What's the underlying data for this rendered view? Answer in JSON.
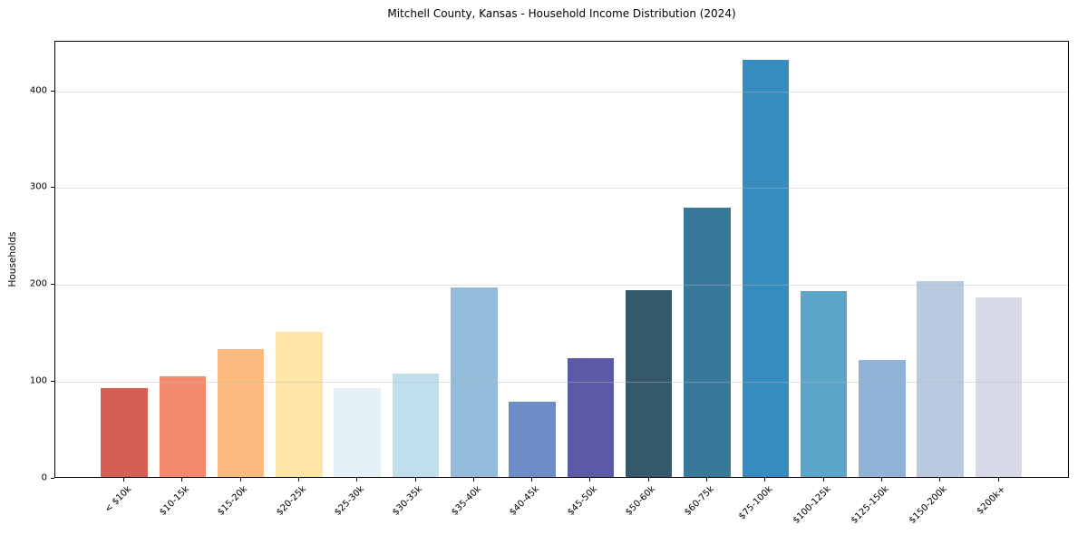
{
  "chart_data": {
    "type": "bar",
    "title": "Mitchell County, Kansas - Household Income Distribution (2024)",
    "xlabel": "",
    "ylabel": "Households",
    "categories": [
      "< $10k",
      "$10-15k",
      "$15-20k",
      "$20-25k",
      "$25-30k",
      "$30-35k",
      "$35-40k",
      "$40-45k",
      "$45-50k",
      "$50-60k",
      "$60-75k",
      "$75-100k",
      "$100-125k",
      "$125-150k",
      "$150-200k",
      "$200k+"
    ],
    "values": [
      92,
      104,
      132,
      150,
      92,
      107,
      196,
      78,
      123,
      193,
      278,
      430,
      192,
      121,
      202,
      185
    ],
    "bar_colors": [
      "#d65f55",
      "#f48a6d",
      "#fbbb7e",
      "#fde5a7",
      "#e4f1f7",
      "#bedfeb",
      "#92bcda",
      "#6c8dc5",
      "#5c5aa7",
      "#35596b",
      "#38799b",
      "#368bbf",
      "#5ca4c8",
      "#90b4d7",
      "#b9c9e0",
      "#d8d9e6"
    ],
    "ylim": [
      0,
      451
    ],
    "yticks": [
      0,
      100,
      200,
      300,
      400
    ],
    "grid": "horizontal",
    "legend_position": "none"
  }
}
